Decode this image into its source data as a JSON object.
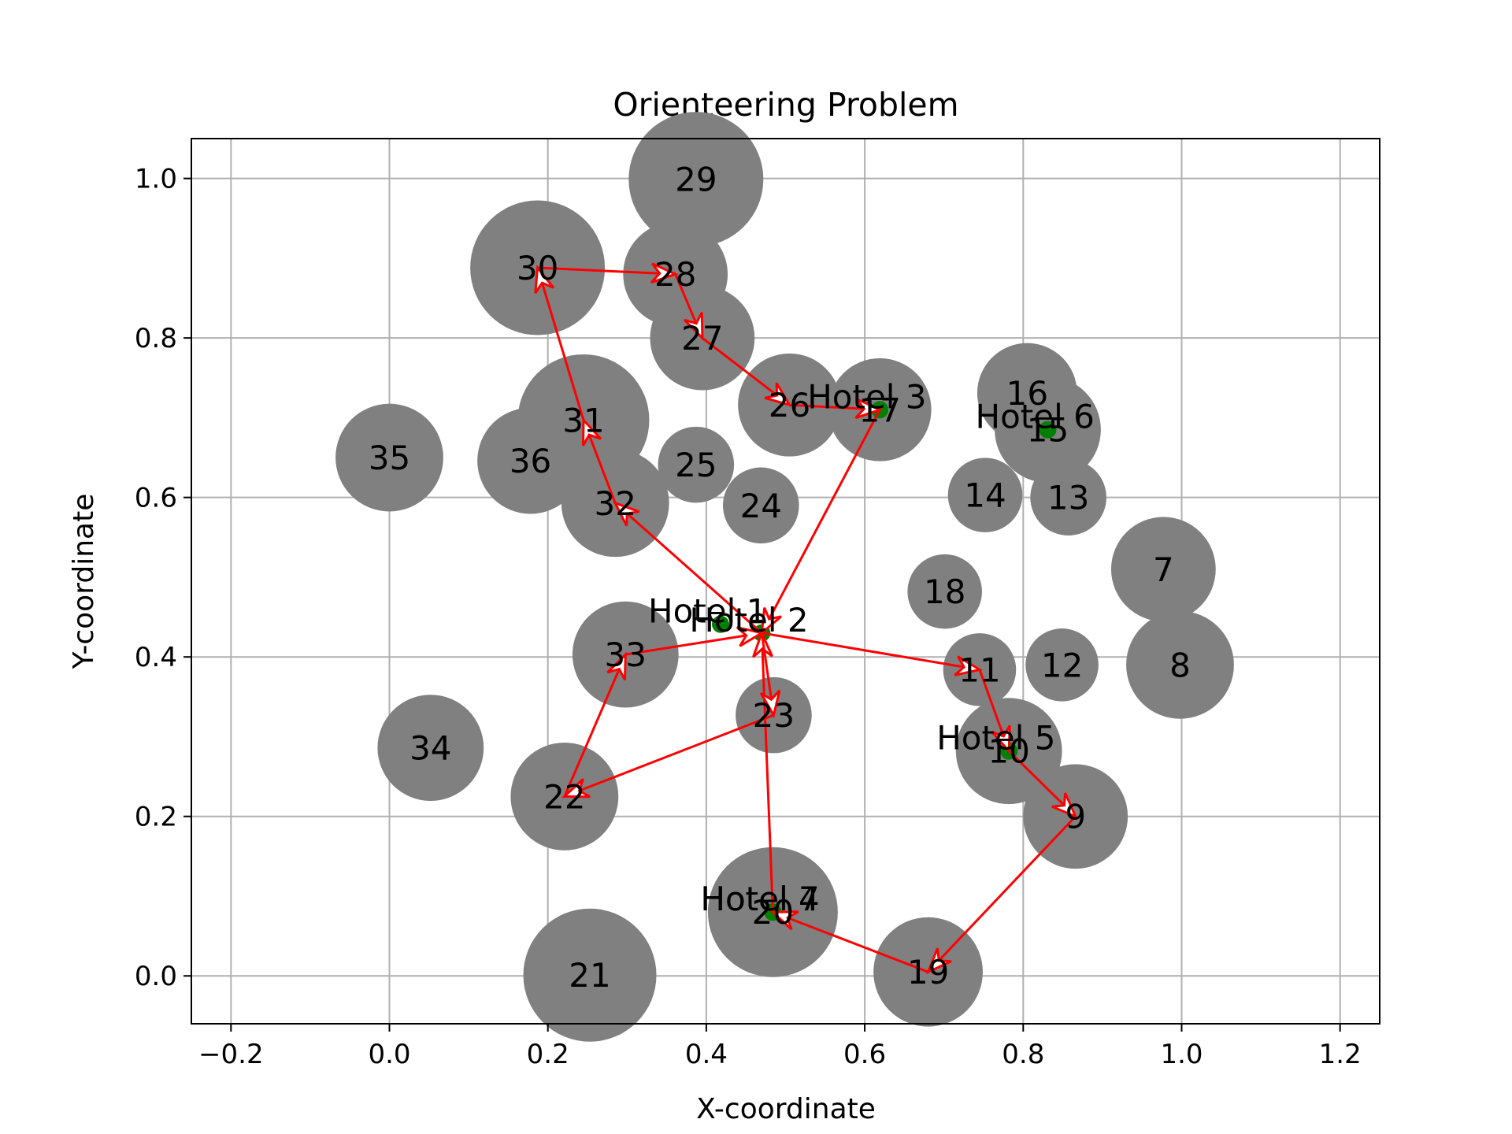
{
  "chart_data": {
    "type": "scatter",
    "title": "Orienteering Problem",
    "xlabel": "X-coordinate",
    "ylabel": "Y-coordinate",
    "xlim": [
      -0.25,
      1.25
    ],
    "ylim": [
      -0.06,
      1.05
    ],
    "grid": true,
    "xticks": [
      -0.2,
      0.0,
      0.2,
      0.4,
      0.6,
      0.8,
      1.0,
      1.2
    ],
    "xtick_labels": [
      "−0.2",
      "0.0",
      "0.2",
      "0.4",
      "0.6",
      "0.8",
      "1.0",
      "1.2"
    ],
    "yticks": [
      0.0,
      0.2,
      0.4,
      0.6,
      0.8,
      1.0
    ],
    "ytick_labels": [
      "0.0",
      "0.2",
      "0.4",
      "0.6",
      "0.8",
      "1.0"
    ],
    "colors": {
      "node": "#808080",
      "hotel": "#008000",
      "route": "#ff0000",
      "grid": "#b0b0b0"
    },
    "nodes": [
      {
        "id": "7",
        "x": 0.977,
        "y": 0.51,
        "r": 0.066
      },
      {
        "id": "8",
        "x": 0.998,
        "y": 0.39,
        "r": 0.068
      },
      {
        "id": "9",
        "x": 0.866,
        "y": 0.2,
        "r": 0.066
      },
      {
        "id": "10",
        "x": 0.782,
        "y": 0.282,
        "r": 0.067
      },
      {
        "id": "11",
        "x": 0.745,
        "y": 0.384,
        "r": 0.046
      },
      {
        "id": "12",
        "x": 0.849,
        "y": 0.39,
        "r": 0.046
      },
      {
        "id": "13",
        "x": 0.857,
        "y": 0.6,
        "r": 0.048
      },
      {
        "id": "14",
        "x": 0.752,
        "y": 0.603,
        "r": 0.047
      },
      {
        "id": "15",
        "x": 0.831,
        "y": 0.685,
        "r": 0.067
      },
      {
        "id": "16",
        "x": 0.805,
        "y": 0.731,
        "r": 0.063
      },
      {
        "id": "17",
        "x": 0.619,
        "y": 0.71,
        "r": 0.065
      },
      {
        "id": "18",
        "x": 0.701,
        "y": 0.482,
        "r": 0.047
      },
      {
        "id": "19",
        "x": 0.68,
        "y": 0.005,
        "r": 0.069
      },
      {
        "id": "20",
        "x": 0.484,
        "y": 0.08,
        "r": 0.082
      },
      {
        "id": "21",
        "x": 0.253,
        "y": 0.001,
        "r": 0.084
      },
      {
        "id": "22",
        "x": 0.221,
        "y": 0.225,
        "r": 0.068
      },
      {
        "id": "23",
        "x": 0.485,
        "y": 0.327,
        "r": 0.048
      },
      {
        "id": "24",
        "x": 0.469,
        "y": 0.59,
        "r": 0.048
      },
      {
        "id": "25",
        "x": 0.387,
        "y": 0.641,
        "r": 0.048
      },
      {
        "id": "26",
        "x": 0.505,
        "y": 0.716,
        "r": 0.065
      },
      {
        "id": "27",
        "x": 0.395,
        "y": 0.8,
        "r": 0.066
      },
      {
        "id": "28",
        "x": 0.361,
        "y": 0.88,
        "r": 0.066
      },
      {
        "id": "29",
        "x": 0.387,
        "y": 0.999,
        "r": 0.085
      },
      {
        "id": "30",
        "x": 0.187,
        "y": 0.888,
        "r": 0.085
      },
      {
        "id": "31",
        "x": 0.245,
        "y": 0.697,
        "r": 0.083
      },
      {
        "id": "32",
        "x": 0.285,
        "y": 0.593,
        "r": 0.068
      },
      {
        "id": "33",
        "x": 0.298,
        "y": 0.403,
        "r": 0.067
      },
      {
        "id": "34",
        "x": 0.052,
        "y": 0.286,
        "r": 0.067
      },
      {
        "id": "35",
        "x": 0.0,
        "y": 0.65,
        "r": 0.068
      },
      {
        "id": "36",
        "x": 0.178,
        "y": 0.646,
        "r": 0.067
      }
    ],
    "hotels": [
      {
        "id": "Hotel 1",
        "x": 0.418,
        "y": 0.441
      },
      {
        "id": "Hotel 2",
        "x": 0.47,
        "y": 0.43
      },
      {
        "id": "Hotel 3",
        "x": 0.619,
        "y": 0.71
      },
      {
        "id": "Hotel 4",
        "x": 0.484,
        "y": 0.08
      },
      {
        "id": "Hotel 5",
        "x": 0.782,
        "y": 0.282
      },
      {
        "id": "Hotel 6",
        "x": 0.831,
        "y": 0.685
      },
      {
        "id": "Hotel 7",
        "x": 0.484,
        "y": 0.08
      }
    ],
    "route": [
      {
        "from": "Hotel 2",
        "to": "11"
      },
      {
        "from": "11",
        "to": "10"
      },
      {
        "from": "10",
        "to": "9"
      },
      {
        "from": "9",
        "to": "19"
      },
      {
        "from": "19",
        "to": "20"
      },
      {
        "from": "20",
        "to": "Hotel 2"
      },
      {
        "from": "Hotel 2",
        "to": "23"
      },
      {
        "from": "23",
        "to": "22"
      },
      {
        "from": "22",
        "to": "33"
      },
      {
        "from": "33",
        "to": "Hotel 2"
      },
      {
        "from": "Hotel 2",
        "to": "32"
      },
      {
        "from": "32",
        "to": "31"
      },
      {
        "from": "31",
        "to": "30"
      },
      {
        "from": "30",
        "to": "28"
      },
      {
        "from": "28",
        "to": "27"
      },
      {
        "from": "27",
        "to": "26"
      },
      {
        "from": "26",
        "to": "17"
      },
      {
        "from": "17",
        "to": "Hotel 2"
      }
    ]
  }
}
